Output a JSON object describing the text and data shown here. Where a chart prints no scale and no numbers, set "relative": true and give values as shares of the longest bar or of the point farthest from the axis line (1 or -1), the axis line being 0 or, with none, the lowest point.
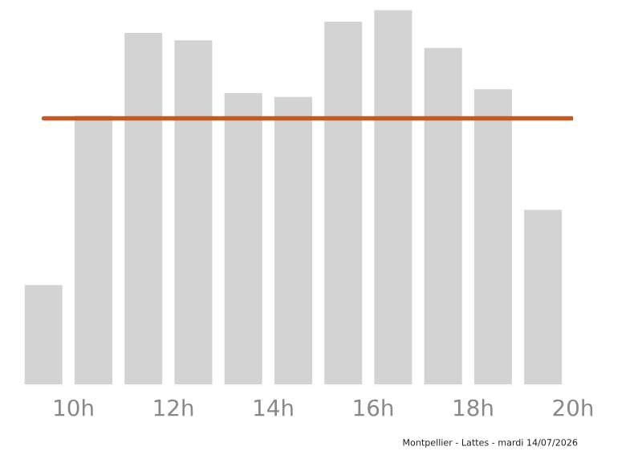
{
  "chart_data": {
    "type": "bar",
    "relative": true,
    "x": [
      9.4,
      10.4,
      11.4,
      12.4,
      13.4,
      14.4,
      15.4,
      16.4,
      17.4,
      18.4,
      19.4
    ],
    "values": [
      0.27,
      0.72,
      0.94,
      0.92,
      0.78,
      0.77,
      0.97,
      1,
      0.9,
      0.79,
      0.47
    ],
    "color": "#d3d3d3",
    "xlim": [
      8.85,
      20
    ],
    "xticks": [
      {
        "value": 10,
        "label": "10h"
      },
      {
        "value": 12,
        "label": "12h"
      },
      {
        "value": 14,
        "label": "14h"
      },
      {
        "value": 16,
        "label": "16h"
      },
      {
        "value": 18,
        "label": "18h"
      },
      {
        "value": 20,
        "label": "20h"
      }
    ],
    "ref_lines": [
      {
        "axis": "y",
        "value": 0.71,
        "color": "#c8581e"
      }
    ],
    "grid": false,
    "legend": false,
    "annotations": [
      "Montpellier - Lattes - mardi 14/07/2026"
    ]
  }
}
